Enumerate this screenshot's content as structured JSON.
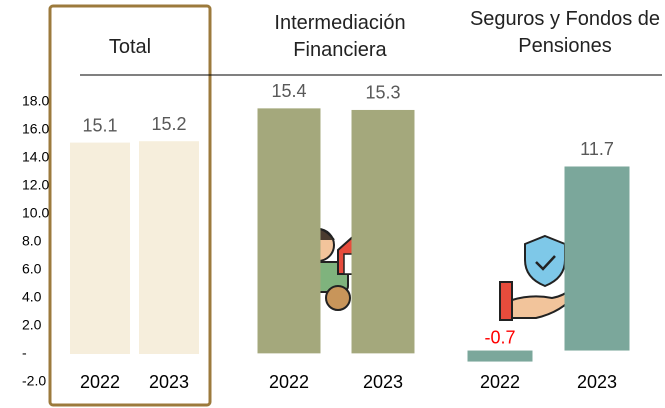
{
  "chart_data": [
    {
      "type": "bar",
      "title": "Total",
      "categories": [
        "2022",
        "2023"
      ],
      "values": [
        15.1,
        15.2
      ],
      "color": "#f6eedc",
      "ylim": [
        -2,
        18
      ],
      "yticks": [
        {
          "value": -2,
          "label": "-2.0"
        },
        {
          "value": 0,
          "label": "-"
        },
        {
          "value": 2,
          "label": "2.0"
        },
        {
          "value": 4,
          "label": "4.0"
        },
        {
          "value": 6,
          "label": "6.0"
        },
        {
          "value": 8,
          "label": "8.0"
        },
        {
          "value": 10,
          "label": "10.0"
        },
        {
          "value": 12,
          "label": "12.0"
        },
        {
          "value": 14,
          "label": "14.0"
        },
        {
          "value": 16,
          "label": "16.0"
        },
        {
          "value": 18,
          "label": "18.0"
        }
      ]
    },
    {
      "type": "bar",
      "title": "Intermediación Financiera",
      "categories": [
        "2022",
        "2023"
      ],
      "values": [
        15.4,
        15.3
      ],
      "color": "#a4a87c",
      "ylim": [
        -1.8,
        15.8
      ]
    },
    {
      "type": "bar",
      "title": "Seguros y Fondos de Pensiones",
      "categories": [
        "2022",
        "2023"
      ],
      "values": [
        -0.7,
        11.7
      ],
      "color": "#7ba79b",
      "negative_label_color": "#ff0000",
      "ylim": [
        -2,
        15.8
      ]
    }
  ]
}
